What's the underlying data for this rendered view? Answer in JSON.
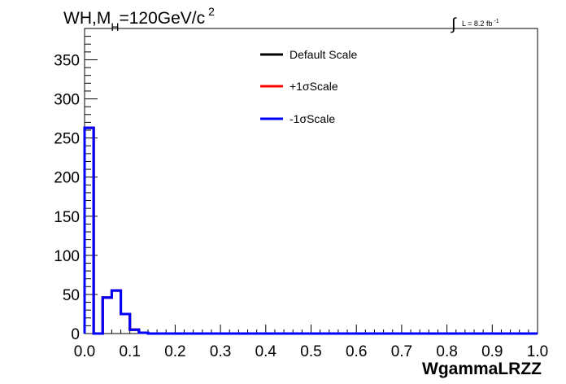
{
  "chart_data": {
    "type": "line",
    "title": {
      "main": "WH,M",
      "sub": "H",
      "rest": "=120GeV/c",
      "sup": "2"
    },
    "lumi": {
      "symbol": "∫",
      "text": "L = 8.2 fb",
      "sup": "-1"
    },
    "xlabel": "WgammaLRZZ",
    "ylabel": "",
    "xlim": [
      0.0,
      1.0
    ],
    "ylim": [
      0,
      390
    ],
    "x_ticks": [
      "0.0",
      "0.1",
      "0.2",
      "0.3",
      "0.4",
      "0.5",
      "0.6",
      "0.7",
      "0.8",
      "0.9",
      "1.0"
    ],
    "y_ticks": [
      "0",
      "50",
      "100",
      "150",
      "200",
      "250",
      "300",
      "350"
    ],
    "grid": false,
    "legend_position": "top-center",
    "bin_edges": [
      0.0,
      0.02,
      0.04,
      0.06,
      0.08,
      0.1,
      0.12,
      0.14,
      0.16,
      0.18,
      0.2,
      0.22,
      0.24,
      0.26,
      0.28,
      0.3,
      0.32,
      0.34,
      0.36,
      0.38,
      0.4,
      0.42,
      0.44,
      0.46,
      0.48,
      0.5,
      0.52,
      0.54,
      0.56,
      0.58,
      0.6,
      0.62,
      0.64,
      0.66,
      0.68,
      0.7,
      0.72,
      0.74,
      0.76,
      0.78,
      0.8,
      0.82,
      0.84,
      0.86,
      0.88,
      0.9,
      0.92,
      0.94,
      0.96,
      0.98,
      1.0
    ],
    "series": [
      {
        "name": "Default Scale",
        "color": "#000000",
        "values": [
          263,
          0,
          46,
          55,
          25,
          5,
          1,
          0,
          0,
          0,
          0,
          0,
          0,
          0,
          0,
          0,
          0,
          0,
          0,
          0,
          0,
          0,
          0,
          0,
          0,
          0,
          0,
          0,
          0,
          0,
          0,
          0,
          0,
          0,
          0,
          0,
          0,
          0,
          0,
          0,
          0,
          0,
          0,
          0,
          0,
          0,
          0,
          0,
          0,
          0
        ]
      },
      {
        "name": "+1σScale",
        "color": "#ff0000",
        "values": [
          263,
          0,
          46,
          55,
          25,
          5,
          1,
          0,
          0,
          0,
          0,
          0,
          0,
          0,
          0,
          0,
          0,
          0,
          0,
          0,
          0,
          0,
          0,
          0,
          0,
          0,
          0,
          0,
          0,
          0,
          0,
          0,
          0,
          0,
          0,
          0,
          0,
          0,
          0,
          0,
          0,
          0,
          0,
          0,
          0,
          0,
          0,
          0,
          0,
          0
        ]
      },
      {
        "name": "-1σScale",
        "color": "#0000ff",
        "values": [
          263,
          0,
          46,
          55,
          25,
          5,
          1,
          0,
          0,
          0,
          0,
          0,
          0,
          0,
          0,
          0,
          0,
          0,
          0,
          0,
          0,
          0,
          0,
          0,
          0,
          0,
          0,
          0,
          0,
          0,
          0,
          0,
          0,
          0,
          0,
          0,
          0,
          0,
          0,
          0,
          0,
          0,
          0,
          0,
          0,
          0,
          0,
          0,
          0,
          0
        ]
      }
    ]
  }
}
